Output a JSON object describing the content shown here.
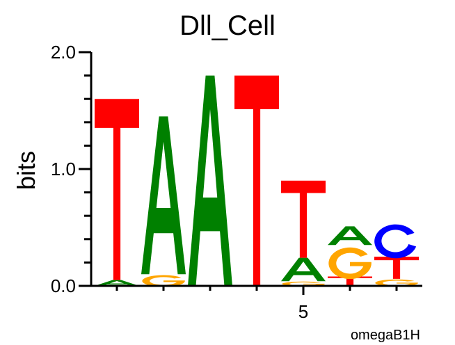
{
  "chart_data": {
    "type": "sequence-logo",
    "title": "Dll_Cell",
    "ylabel": "bits",
    "xlabel": "",
    "ylim": [
      0,
      2.0
    ],
    "yticks": [
      "0.0",
      "1.0",
      "2.0"
    ],
    "xtick_labels": [
      {
        "position": 5,
        "label": "5"
      }
    ],
    "footer": "omegaB1H",
    "colors": {
      "A": "#008000",
      "C": "#0000ff",
      "G": "#ffa500",
      "T": "#ff0000"
    },
    "positions": [
      {
        "pos": 1,
        "stack": [
          {
            "letter": "A",
            "bits": 0.05
          },
          {
            "letter": "T",
            "bits": 1.55
          }
        ]
      },
      {
        "pos": 2,
        "stack": [
          {
            "letter": "G",
            "bits": 0.1
          },
          {
            "letter": "A",
            "bits": 1.35
          }
        ]
      },
      {
        "pos": 3,
        "stack": [
          {
            "letter": "A",
            "bits": 1.8
          }
        ]
      },
      {
        "pos": 4,
        "stack": [
          {
            "letter": "T",
            "bits": 1.8
          }
        ]
      },
      {
        "pos": 5,
        "stack": [
          {
            "letter": "G",
            "bits": 0.04
          },
          {
            "letter": "A",
            "bits": 0.2
          },
          {
            "letter": "T",
            "bits": 0.66
          }
        ]
      },
      {
        "pos": 6,
        "stack": [
          {
            "letter": "T",
            "bits": 0.08
          },
          {
            "letter": "G",
            "bits": 0.27
          },
          {
            "letter": "A",
            "bits": 0.16
          }
        ]
      },
      {
        "pos": 7,
        "stack": [
          {
            "letter": "G",
            "bits": 0.06
          },
          {
            "letter": "T",
            "bits": 0.19
          },
          {
            "letter": "C",
            "bits": 0.29
          }
        ]
      }
    ]
  }
}
